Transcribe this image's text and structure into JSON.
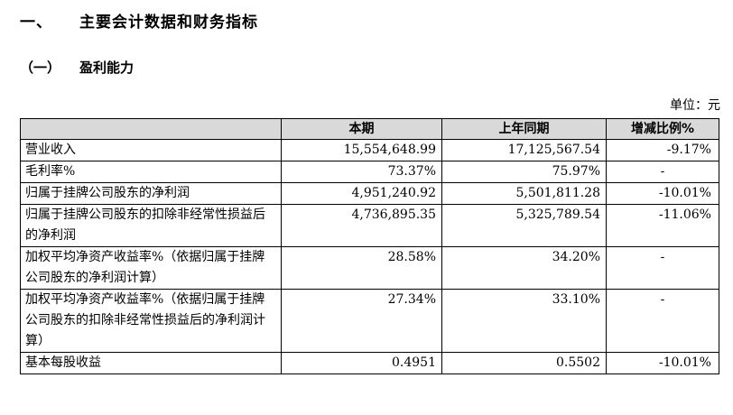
{
  "heading": {
    "number": "一、",
    "title": "主要会计数据和财务指标"
  },
  "subheading": {
    "number": "（一）",
    "title": "盈利能力"
  },
  "unit_note": "单位：元",
  "table": {
    "headers": [
      "",
      "本期",
      "上年同期",
      "增减比例%"
    ],
    "rows": [
      {
        "label": "营业收入",
        "current": "15,554,648.99",
        "prior": "17,125,567.54",
        "change": "-9.17%"
      },
      {
        "label": "毛利率%",
        "current": "73.37%",
        "prior": "75.97%",
        "change": "-"
      },
      {
        "label": "归属于挂牌公司股东的净利润",
        "current": "4,951,240.92",
        "prior": "5,501,811.28",
        "change": "-10.01%"
      },
      {
        "label": "归属于挂牌公司股东的扣除非经常性损益后的净利润",
        "current": "4,736,895.35",
        "prior": "5,325,789.54",
        "change": "-11.06%"
      },
      {
        "label": "加权平均净资产收益率%（依据归属于挂牌公司股东的净利润计算）",
        "current": "28.58%",
        "prior": "34.20%",
        "change": "-"
      },
      {
        "label": "加权平均净资产收益率%（依据归属于挂牌公司股东的扣除非经常性损益后的净利润计算）",
        "current": "27.34%",
        "prior": "33.10%",
        "change": "-"
      },
      {
        "label": "基本每股收益",
        "current": "0.4951",
        "prior": "0.5502",
        "change": "-10.01%"
      }
    ]
  }
}
